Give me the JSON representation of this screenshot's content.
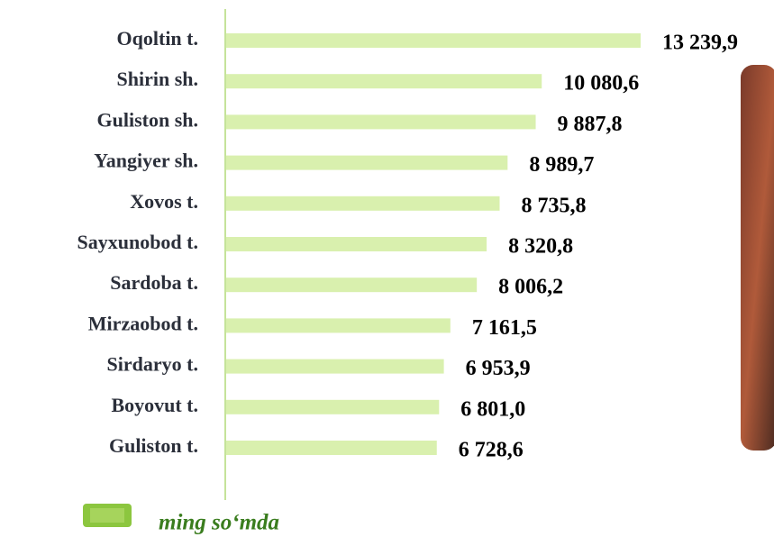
{
  "chart_data": {
    "type": "bar",
    "orientation": "horizontal",
    "categories": [
      "Oqoltin t.",
      "Shirin sh.",
      "Guliston sh.",
      "Yangiyer sh.",
      "Xovos t.",
      "Sayxunobod t.",
      "Sardoba t.",
      "Mirzaobod t.",
      "Sirdaryo t.",
      "Boyovut t.",
      "Guliston t."
    ],
    "series": [
      {
        "name": "ming so‘mda",
        "color": "#d9f0ae",
        "values": [
          13239.9,
          10080.6,
          9887.8,
          8989.7,
          8735.8,
          8320.8,
          8006.2,
          7161.5,
          6953.9,
          6801.0,
          6728.6
        ],
        "value_labels": [
          "13 239,9",
          "10 080,6",
          "9 887,8",
          "8 989,7",
          "8 735,8",
          "8 320,8",
          "8 006,2",
          "7 161,5",
          "6 953,9",
          "6 801,0",
          "6 728,6"
        ]
      }
    ]
  }
}
